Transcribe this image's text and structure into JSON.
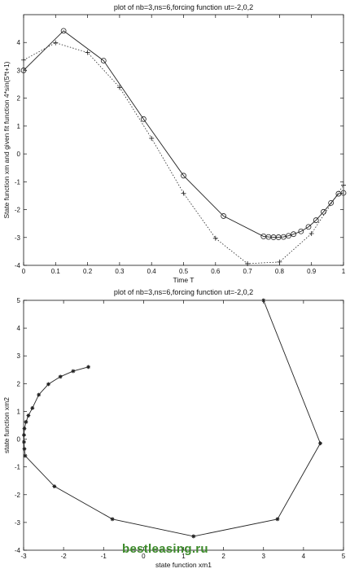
{
  "chart_data": [
    {
      "type": "line",
      "title": "plot of nb=3,ns=6,forcing function ut=-2,0,2",
      "xlabel": "Time T",
      "ylabel": "State function xm and given fit function 4*sin(5*t+1)",
      "xlim": [
        0,
        1
      ],
      "ylim": [
        -4,
        5
      ],
      "xticks": [
        "0",
        "0.1",
        "0.2",
        "0.3",
        "0.4",
        "0.5",
        "0.6",
        "0.7",
        "0.8",
        "0.9",
        "1"
      ],
      "yticks": [
        "-4",
        "-3",
        "-2",
        "-1",
        "0",
        "1",
        "2",
        "3",
        "4"
      ],
      "grid": false,
      "series": [
        {
          "style": "solid-circle",
          "color": "#222222",
          "x": [
            0,
            0.125,
            0.25,
            0.375,
            0.5,
            0.625,
            0.75,
            0.7656,
            0.7813,
            0.7969,
            0.8125,
            0.8281,
            0.8438,
            0.8672,
            0.8906,
            0.9141,
            0.9375,
            0.9609,
            0.9844,
            1.0
          ],
          "y": [
            3.0,
            4.42,
            3.35,
            1.25,
            -0.78,
            -2.23,
            -2.96,
            -2.98,
            -2.99,
            -2.99,
            -2.98,
            -2.94,
            -2.88,
            -2.78,
            -2.62,
            -2.38,
            -2.08,
            -1.76,
            -1.43,
            -1.4
          ]
        },
        {
          "style": "dotted-plus",
          "color": "#222222",
          "x": [
            0,
            0.1,
            0.2,
            0.3,
            0.4,
            0.5,
            0.6,
            0.7,
            0.8,
            0.9,
            1.0
          ],
          "y": [
            3.37,
            3.99,
            3.64,
            2.39,
            0.56,
            -1.41,
            -3.03,
            -3.94,
            -3.88,
            -2.86,
            -1.12
          ]
        }
      ]
    },
    {
      "type": "line",
      "title": "plot of nb=3,ns=6,forcing function ut=-2,0,2",
      "xlabel": "state function xm1",
      "ylabel": "state function xm2",
      "xlim": [
        -3,
        5
      ],
      "ylim": [
        -4,
        5
      ],
      "xticks": [
        "-3",
        "-2",
        "-1",
        "0",
        "1",
        "2",
        "3",
        "4",
        "5"
      ],
      "yticks": [
        "-4",
        "-3",
        "-2",
        "-1",
        "0",
        "1",
        "2",
        "3",
        "4",
        "5"
      ],
      "grid": false,
      "series": [
        {
          "style": "solid-star",
          "color": "#222222",
          "x": [
            3.0,
            4.42,
            3.35,
            1.25,
            -0.78,
            -2.23,
            -2.96,
            -2.98,
            -2.99,
            -2.99,
            -2.98,
            -2.94,
            -2.88,
            -2.78,
            -2.62,
            -2.38,
            -2.08,
            -1.76,
            -1.38
          ],
          "y": [
            5.0,
            -0.15,
            -2.88,
            -3.5,
            -2.88,
            -1.7,
            -0.6,
            -0.35,
            -0.1,
            0.15,
            0.38,
            0.62,
            0.85,
            1.12,
            1.6,
            1.98,
            2.25,
            2.45,
            2.6
          ]
        }
      ]
    }
  ],
  "watermark": "bestleasing.ru"
}
